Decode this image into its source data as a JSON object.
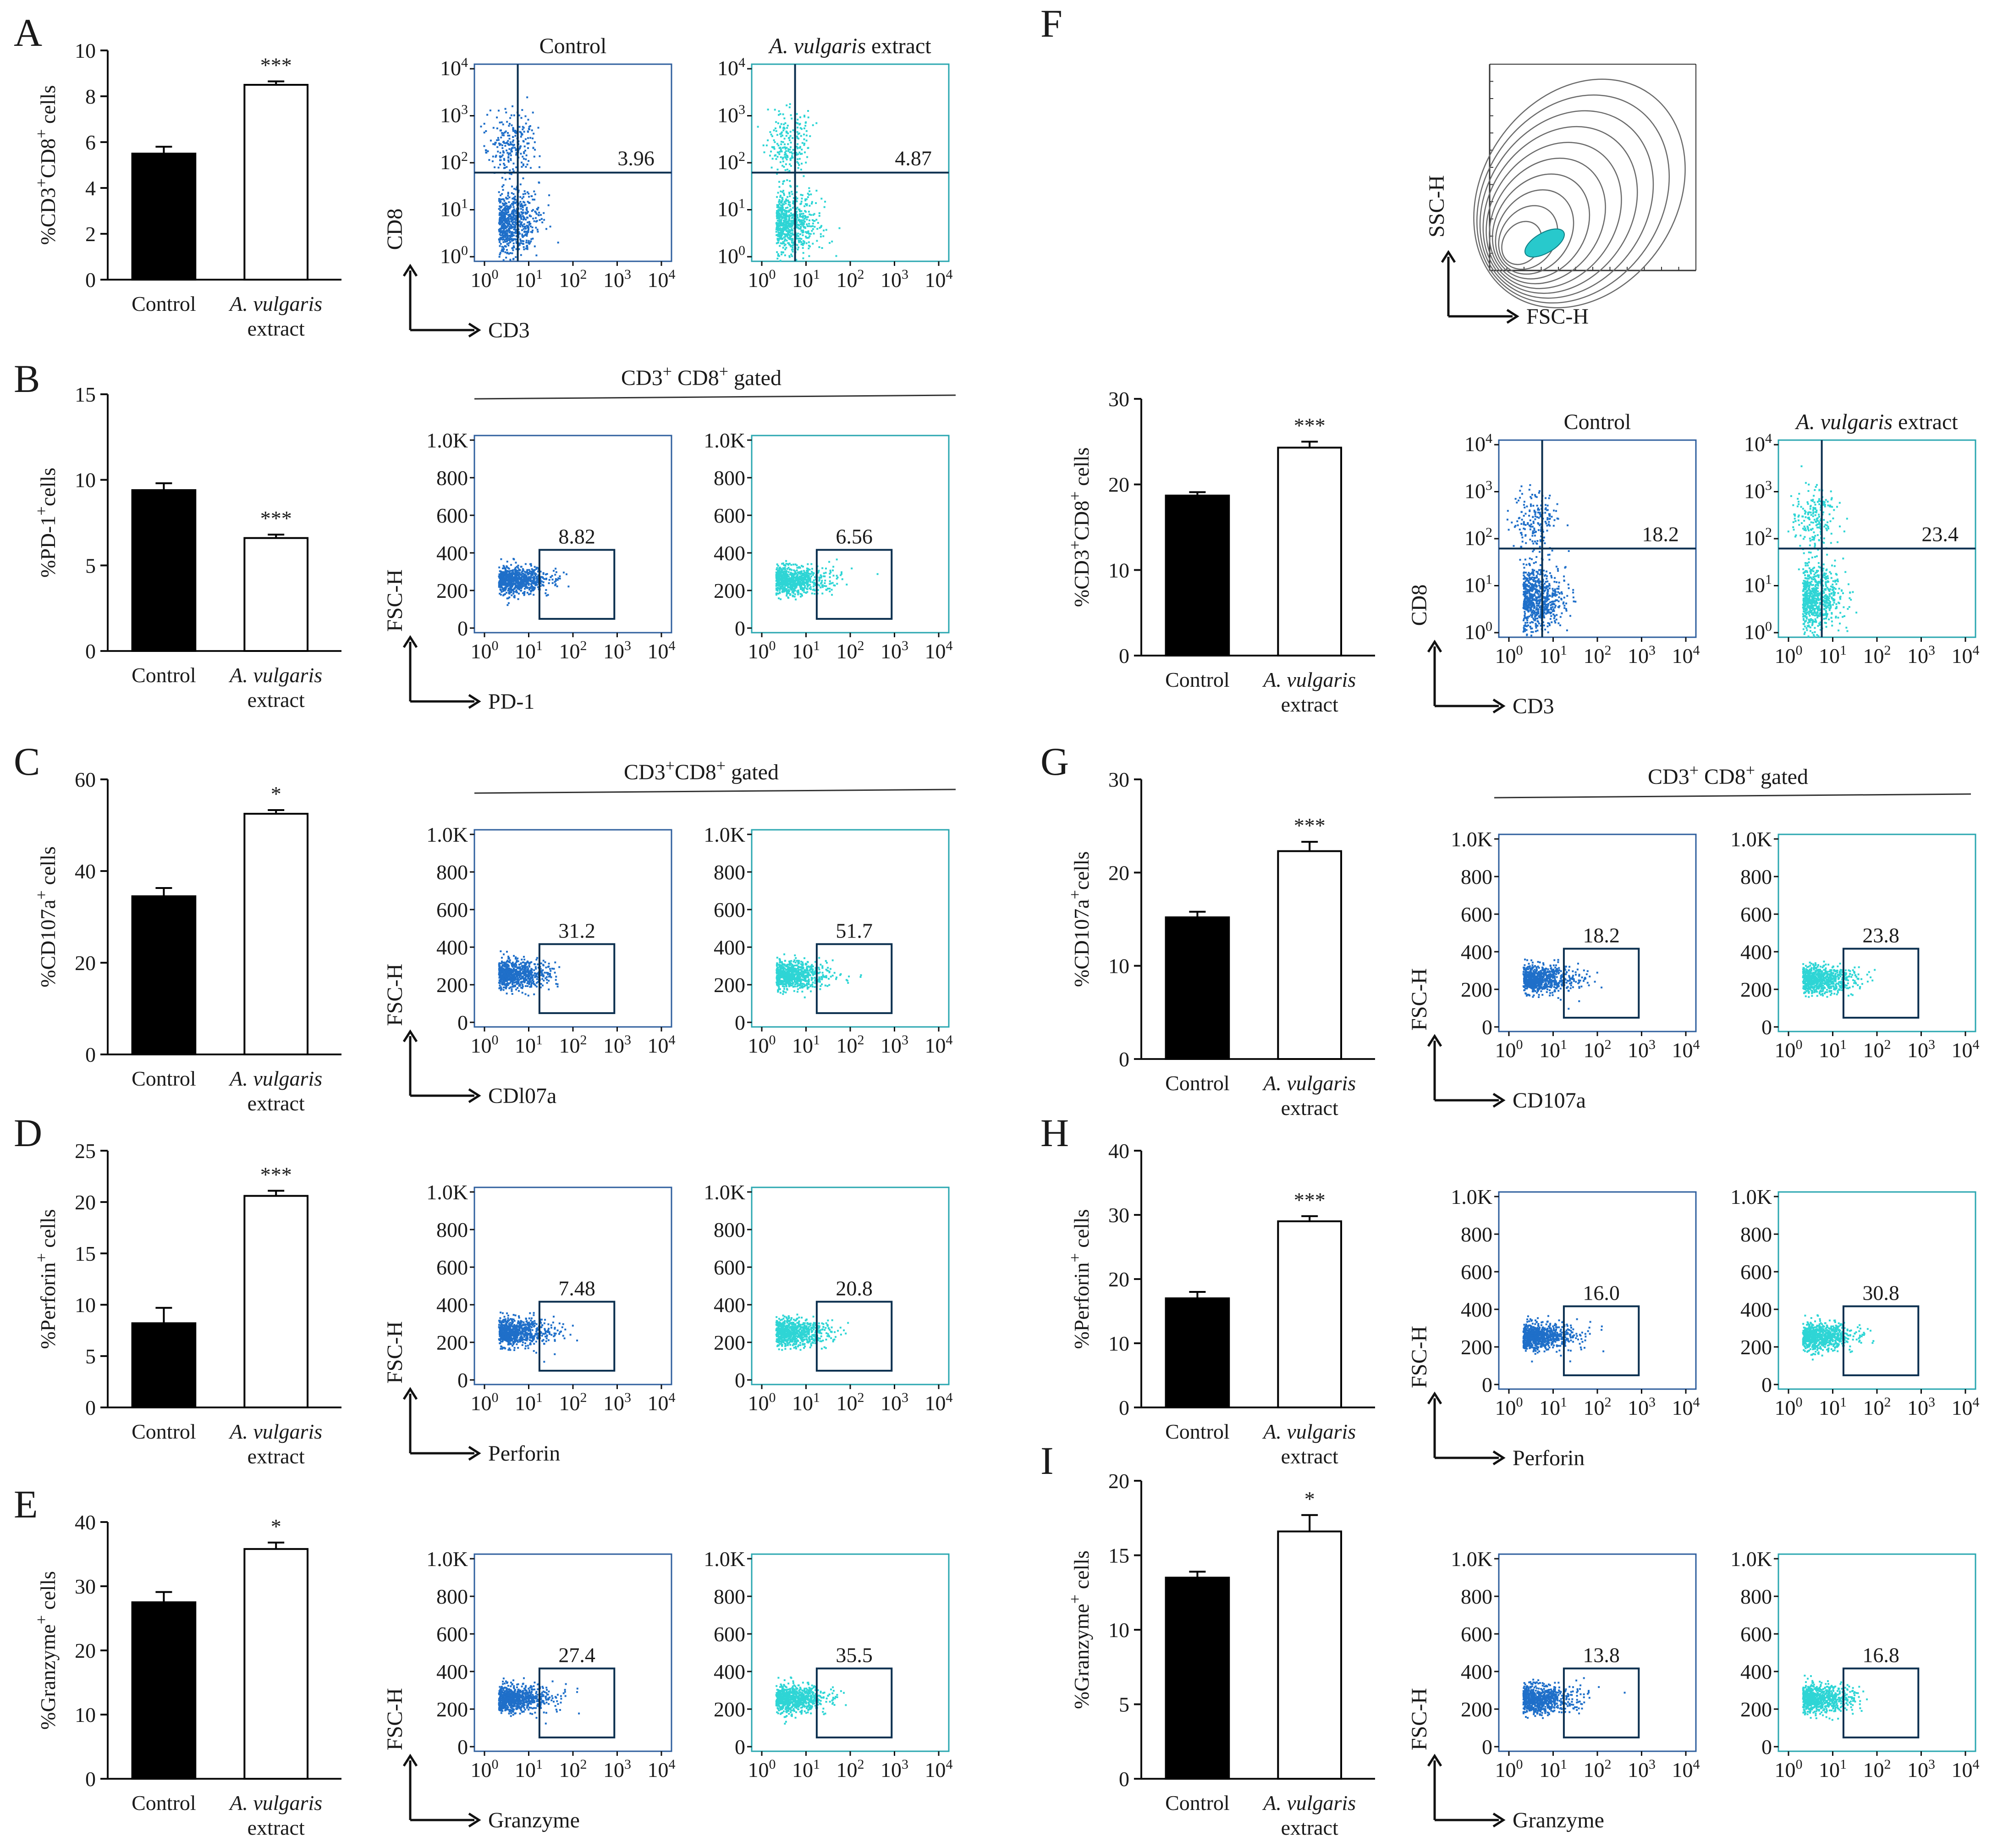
{
  "colors": {
    "control_dots": "#1f6fc9",
    "extract_dots": "#2ed5d5",
    "bar_control": "#000000",
    "bar_extract": "#ffffff"
  },
  "chart_data": [
    {
      "panel": "A",
      "type": "bar",
      "ylabel": "%CD3+CD8+ cells",
      "ylim": [
        0,
        10
      ],
      "yticks": [
        0,
        2,
        4,
        6,
        8,
        10
      ],
      "categories": [
        "Control",
        "A. vulgaris extract"
      ],
      "values": [
        5.5,
        8.5
      ],
      "errors": [
        0.3,
        0.15
      ],
      "significance": "***",
      "flow": {
        "x_marker": "CD3",
        "y_marker": "CD8",
        "plot_titles": [
          "Control",
          "A. vulgaris extract"
        ],
        "percentages": [
          "3.96",
          "4.87"
        ],
        "style": "quadrant",
        "gated_label": ""
      }
    },
    {
      "panel": "B",
      "type": "bar",
      "ylabel": "%PD-1+cells",
      "ylim": [
        0,
        15
      ],
      "yticks": [
        0,
        5,
        10,
        15
      ],
      "categories": [
        "Control",
        "A. vulgaris extract"
      ],
      "values": [
        9.4,
        6.6
      ],
      "errors": [
        0.4,
        0.2
      ],
      "significance": "***",
      "flow": {
        "x_marker": "PD-1",
        "y_marker": "FSC-H",
        "plot_titles": [
          "",
          ""
        ],
        "percentages": [
          "8.82",
          "6.56"
        ],
        "style": "gate",
        "gated_label": "CD3+ CD8+ gated"
      }
    },
    {
      "panel": "C",
      "type": "bar",
      "ylabel": "%CD107a+ cells",
      "ylim": [
        0,
        60
      ],
      "yticks": [
        0,
        20,
        40,
        60
      ],
      "categories": [
        "Control",
        "A. vulgaris extract"
      ],
      "values": [
        34.5,
        52.5
      ],
      "errors": [
        1.8,
        0.8
      ],
      "significance": "*",
      "flow": {
        "x_marker": "CDl07a",
        "y_marker": "FSC-H",
        "plot_titles": [
          "",
          ""
        ],
        "percentages": [
          "31.2",
          "51.7"
        ],
        "style": "gate",
        "gated_label": "CD3+CD8+ gated"
      }
    },
    {
      "panel": "D",
      "type": "bar",
      "ylabel": "%Perforin+ cells",
      "ylim": [
        0,
        25
      ],
      "yticks": [
        0,
        5,
        10,
        15,
        20,
        25
      ],
      "categories": [
        "Control",
        "A. vulgaris extract"
      ],
      "values": [
        8.2,
        20.6
      ],
      "errors": [
        1.5,
        0.5
      ],
      "significance": "***",
      "flow": {
        "x_marker": "Perforin",
        "y_marker": "FSC-H",
        "plot_titles": [
          "",
          ""
        ],
        "percentages": [
          "7.48",
          "20.8"
        ],
        "style": "gate",
        "gated_label": ""
      }
    },
    {
      "panel": "E",
      "type": "bar",
      "ylabel": "%Granzyme+ cells",
      "ylim": [
        0,
        40
      ],
      "yticks": [
        0,
        10,
        20,
        30,
        40
      ],
      "categories": [
        "Control",
        "A. vulgaris extract"
      ],
      "values": [
        27.5,
        35.8
      ],
      "errors": [
        1.6,
        1.0
      ],
      "significance": "*",
      "flow": {
        "x_marker": "Granzyme",
        "y_marker": "FSC-H",
        "plot_titles": [
          "",
          ""
        ],
        "percentages": [
          "27.4",
          "35.5"
        ],
        "style": "gate",
        "gated_label": ""
      }
    },
    {
      "panel": "F",
      "type": "bar",
      "ylabel": "%CD3+CD8+ cells",
      "ylim": [
        0,
        30
      ],
      "yticks": [
        0,
        10,
        20,
        30
      ],
      "categories": [
        "Control",
        "A. vulgaris extract"
      ],
      "values": [
        18.7,
        24.3
      ],
      "errors": [
        0.4,
        0.7
      ],
      "significance": "***",
      "flow": {
        "x_marker": "CD3",
        "y_marker": "CD8",
        "plot_titles": [
          "Control",
          "A. vulgaris extract"
        ],
        "percentages": [
          "18.2",
          "23.4"
        ],
        "style": "quadrant",
        "gated_label": ""
      },
      "contour": {
        "x_label": "FSC-H",
        "y_label": "SSC-H"
      }
    },
    {
      "panel": "G",
      "type": "bar",
      "ylabel": "%CD107a+cells",
      "ylim": [
        0,
        30
      ],
      "yticks": [
        0,
        10,
        20,
        30
      ],
      "categories": [
        "Control",
        "A. vulgaris extract"
      ],
      "values": [
        15.2,
        22.3
      ],
      "errors": [
        0.6,
        1.0
      ],
      "significance": "***",
      "flow": {
        "x_marker": "CD107a",
        "y_marker": "FSC-H",
        "plot_titles": [
          "",
          ""
        ],
        "percentages": [
          "18.2",
          "23.8"
        ],
        "style": "gate",
        "gated_label": "CD3+ CD8+ gated"
      }
    },
    {
      "panel": "H",
      "type": "bar",
      "ylabel": "%Perforin+ cells",
      "ylim": [
        0,
        40
      ],
      "yticks": [
        0,
        10,
        20,
        30,
        40
      ],
      "categories": [
        "Control",
        "A. vulgaris extract"
      ],
      "values": [
        17.0,
        29.0
      ],
      "errors": [
        1.0,
        0.8
      ],
      "significance": "***",
      "flow": {
        "x_marker": "Perforin",
        "y_marker": "FSC-H",
        "plot_titles": [
          "",
          ""
        ],
        "percentages": [
          "16.0",
          "30.8"
        ],
        "style": "gate",
        "gated_label": ""
      }
    },
    {
      "panel": "I",
      "type": "bar",
      "ylabel": "%Granzyme+ cells",
      "ylim": [
        0,
        20
      ],
      "yticks": [
        0,
        5,
        10,
        15,
        20
      ],
      "categories": [
        "Control",
        "A. vulgaris extract"
      ],
      "values": [
        13.5,
        16.6
      ],
      "errors": [
        0.4,
        1.1
      ],
      "significance": "*",
      "flow": {
        "x_marker": "Granzyme",
        "y_marker": "FSC-H",
        "plot_titles": [
          "",
          ""
        ],
        "percentages": [
          "13.8",
          "16.8"
        ],
        "style": "gate",
        "gated_label": ""
      }
    }
  ],
  "flow_axis": {
    "x_ticks": [
      "10^0",
      "10^1",
      "10^2",
      "10^3",
      "10^4"
    ],
    "y_ticks_log": [
      "10^0",
      "10^1",
      "10^2",
      "10^3",
      "10^4"
    ],
    "y_ticks_fsc": [
      "0",
      "200",
      "400",
      "600",
      "800",
      "1.0K"
    ]
  }
}
